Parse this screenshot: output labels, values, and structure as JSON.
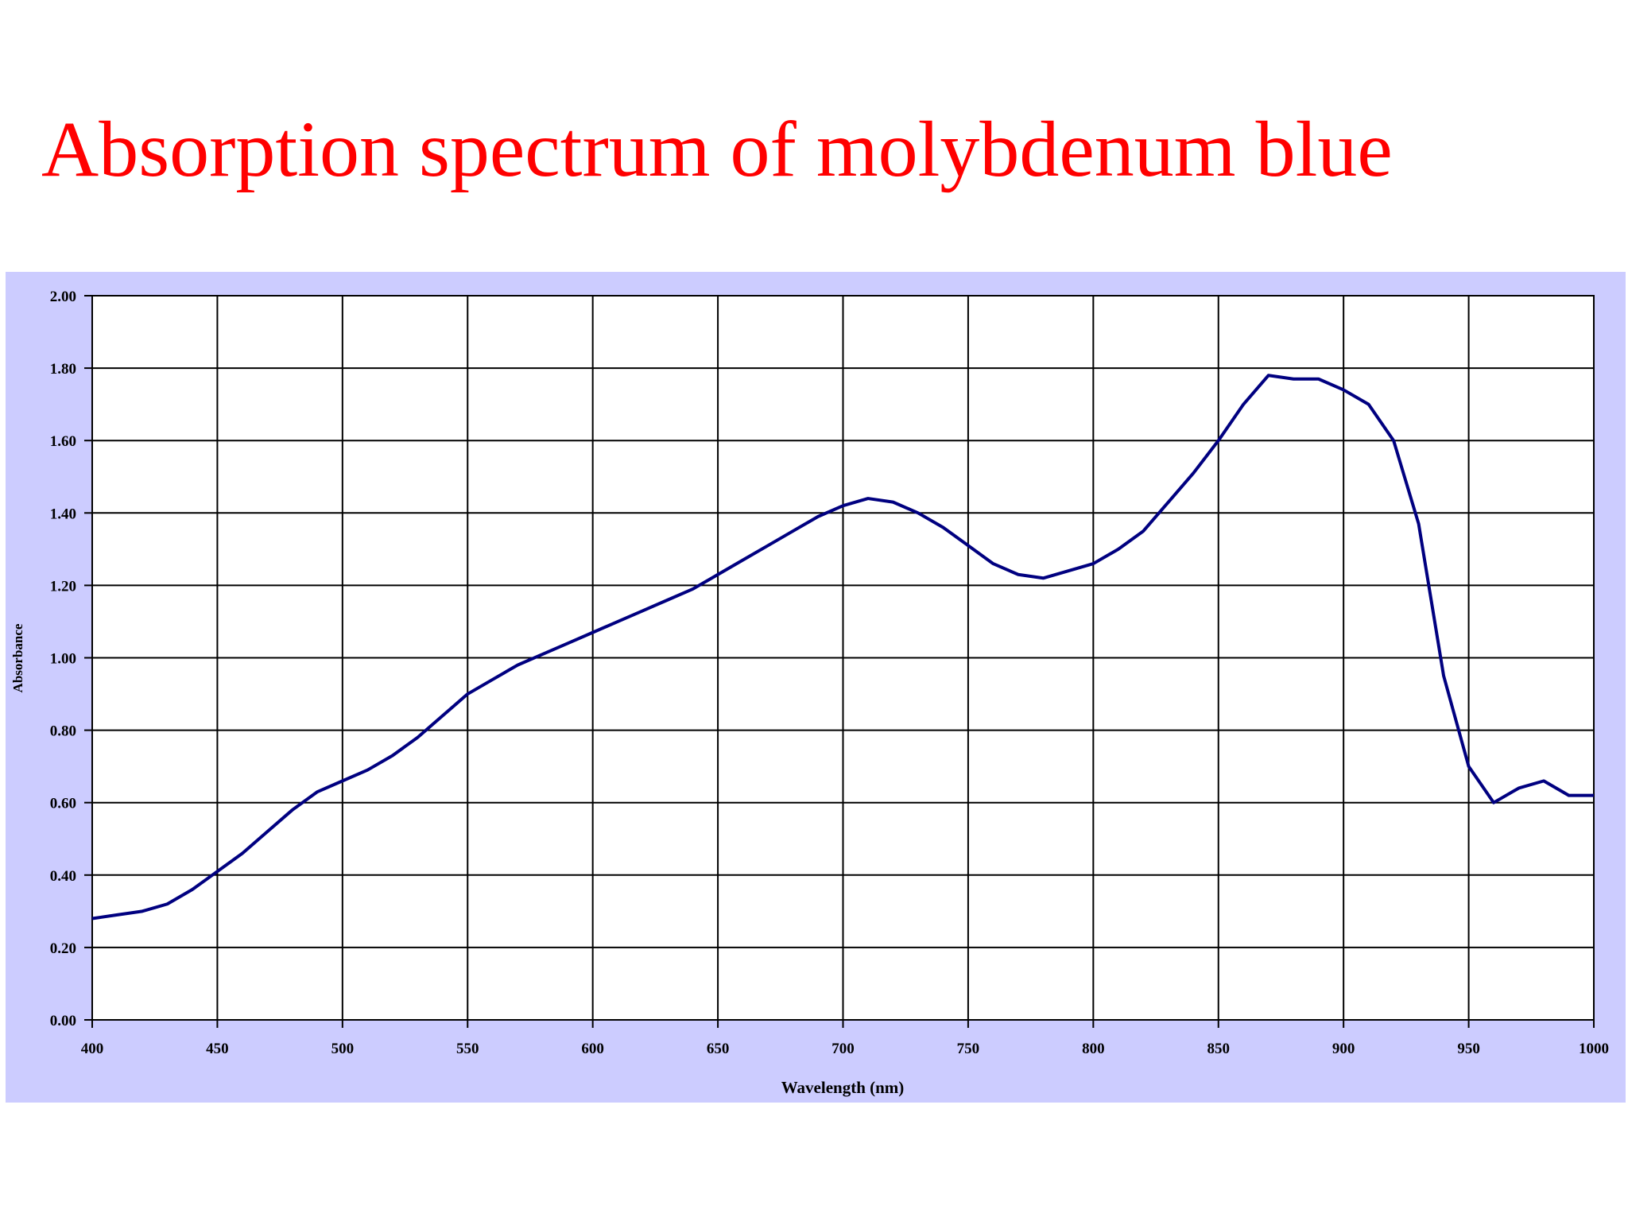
{
  "chart_data": {
    "type": "line",
    "title": "Absorption spectrum of molybdenum blue",
    "x_label": "Wavelength (nm)",
    "y_label": "Absorbance",
    "x": [
      400,
      410,
      420,
      430,
      440,
      450,
      460,
      470,
      480,
      490,
      500,
      510,
      520,
      530,
      540,
      550,
      560,
      570,
      580,
      590,
      600,
      610,
      620,
      630,
      640,
      650,
      660,
      670,
      680,
      690,
      700,
      710,
      720,
      730,
      740,
      750,
      760,
      770,
      780,
      790,
      800,
      810,
      820,
      830,
      840,
      850,
      860,
      870,
      880,
      890,
      900,
      910,
      920,
      930,
      940,
      950,
      960,
      970,
      980,
      990,
      1000
    ],
    "series": [
      {
        "name": "Absorbance",
        "color": "#000080",
        "values": [
          0.28,
          0.29,
          0.3,
          0.32,
          0.36,
          0.41,
          0.46,
          0.52,
          0.58,
          0.63,
          0.66,
          0.69,
          0.73,
          0.78,
          0.84,
          0.9,
          0.94,
          0.98,
          1.01,
          1.04,
          1.07,
          1.1,
          1.13,
          1.16,
          1.19,
          1.23,
          1.27,
          1.31,
          1.35,
          1.39,
          1.42,
          1.44,
          1.43,
          1.4,
          1.36,
          1.31,
          1.26,
          1.23,
          1.22,
          1.24,
          1.26,
          1.3,
          1.35,
          1.43,
          1.51,
          1.6,
          1.7,
          1.78,
          1.77,
          1.77,
          1.74,
          1.7,
          1.6,
          1.37,
          0.95,
          0.7,
          0.6,
          0.64,
          0.66,
          0.62,
          0.62
        ]
      }
    ],
    "xlim": [
      400,
      1000
    ],
    "ylim": [
      0,
      2
    ],
    "xticks": [
      400,
      450,
      500,
      550,
      600,
      650,
      700,
      750,
      800,
      850,
      900,
      950,
      1000
    ],
    "yticks": [
      {
        "value": 0,
        "label": "0.00"
      },
      {
        "value": 0.2,
        "label": "0.20"
      },
      {
        "value": 0.4,
        "label": "0.40"
      },
      {
        "value": 0.6,
        "label": "0.60"
      },
      {
        "value": 0.8,
        "label": "0.80"
      },
      {
        "value": 1,
        "label": "1.00"
      },
      {
        "value": 1.2,
        "label": "1.20"
      },
      {
        "value": 1.4,
        "label": "1.40"
      },
      {
        "value": 1.6,
        "label": "1.60"
      },
      {
        "value": 1.8,
        "label": "1.80"
      },
      {
        "value": 2,
        "label": "2.00"
      }
    ],
    "grid": true
  }
}
